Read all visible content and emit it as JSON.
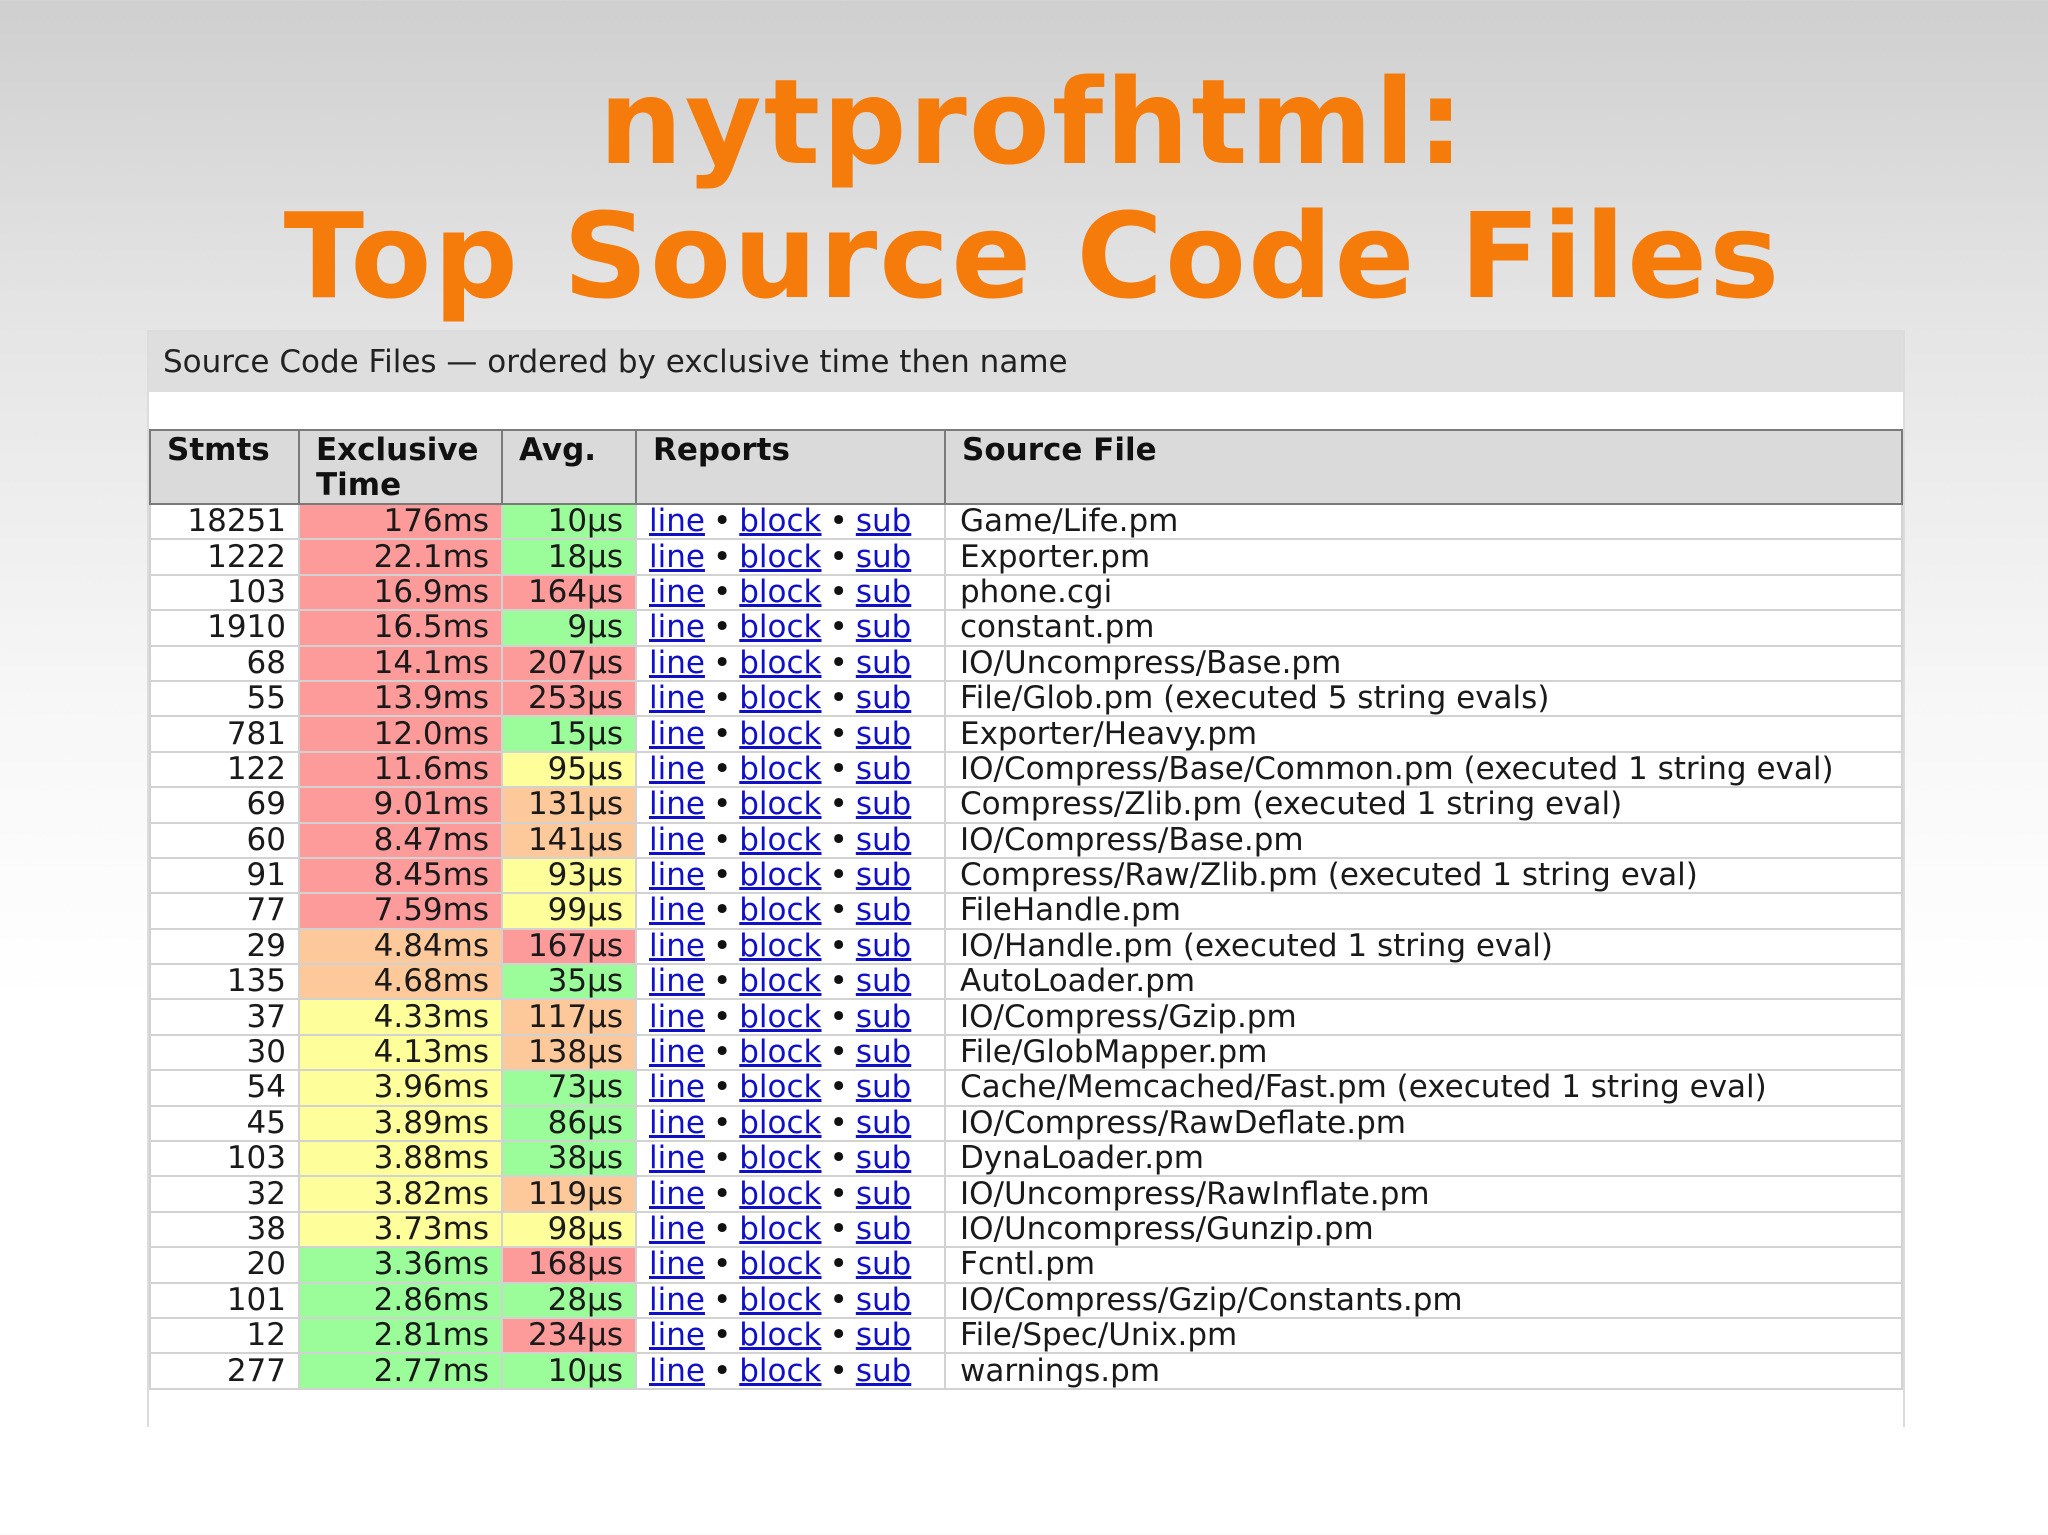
{
  "slide": {
    "title_line1": "nytprofhtml:",
    "title_line2": "Top Source Code Files"
  },
  "report": {
    "caption": "Source Code Files — ordered by exclusive time then name",
    "columns": [
      "Stmts",
      "Exclusive Time",
      "Avg.",
      "Reports",
      "Source File"
    ],
    "link_labels": [
      "line",
      "block",
      "sub"
    ],
    "separator": "•",
    "colors": {
      "red": "#fd9a9a",
      "orange": "#fdc99b",
      "yellow": "#fefe9a",
      "green": "#9bfd9a",
      "link": "#1010c8",
      "title": "#f57c0b"
    },
    "rows": [
      {
        "stmts": "18251",
        "time": "176ms",
        "time_color": "red",
        "avg": "10µs",
        "avg_color": "green",
        "file": "Game/Life.pm"
      },
      {
        "stmts": "1222",
        "time": "22.1ms",
        "time_color": "red",
        "avg": "18µs",
        "avg_color": "green",
        "file": "Exporter.pm"
      },
      {
        "stmts": "103",
        "time": "16.9ms",
        "time_color": "red",
        "avg": "164µs",
        "avg_color": "red",
        "file": "phone.cgi"
      },
      {
        "stmts": "1910",
        "time": "16.5ms",
        "time_color": "red",
        "avg": "9µs",
        "avg_color": "green",
        "file": "constant.pm"
      },
      {
        "stmts": "68",
        "time": "14.1ms",
        "time_color": "red",
        "avg": "207µs",
        "avg_color": "red",
        "file": "IO/Uncompress/Base.pm"
      },
      {
        "stmts": "55",
        "time": "13.9ms",
        "time_color": "red",
        "avg": "253µs",
        "avg_color": "red",
        "file": "File/Glob.pm (executed 5 string evals)"
      },
      {
        "stmts": "781",
        "time": "12.0ms",
        "time_color": "red",
        "avg": "15µs",
        "avg_color": "green",
        "file": "Exporter/Heavy.pm"
      },
      {
        "stmts": "122",
        "time": "11.6ms",
        "time_color": "red",
        "avg": "95µs",
        "avg_color": "yellow",
        "file": "IO/Compress/Base/Common.pm (executed 1 string eval)"
      },
      {
        "stmts": "69",
        "time": "9.01ms",
        "time_color": "red",
        "avg": "131µs",
        "avg_color": "orange",
        "file": "Compress/Zlib.pm (executed 1 string eval)"
      },
      {
        "stmts": "60",
        "time": "8.47ms",
        "time_color": "red",
        "avg": "141µs",
        "avg_color": "orange",
        "file": "IO/Compress/Base.pm"
      },
      {
        "stmts": "91",
        "time": "8.45ms",
        "time_color": "red",
        "avg": "93µs",
        "avg_color": "yellow",
        "file": "Compress/Raw/Zlib.pm (executed 1 string eval)"
      },
      {
        "stmts": "77",
        "time": "7.59ms",
        "time_color": "red",
        "avg": "99µs",
        "avg_color": "yellow",
        "file": "FileHandle.pm"
      },
      {
        "stmts": "29",
        "time": "4.84ms",
        "time_color": "orange",
        "avg": "167µs",
        "avg_color": "red",
        "file": "IO/Handle.pm (executed 1 string eval)"
      },
      {
        "stmts": "135",
        "time": "4.68ms",
        "time_color": "orange",
        "avg": "35µs",
        "avg_color": "green",
        "file": "AutoLoader.pm"
      },
      {
        "stmts": "37",
        "time": "4.33ms",
        "time_color": "yellow",
        "avg": "117µs",
        "avg_color": "orange",
        "file": "IO/Compress/Gzip.pm"
      },
      {
        "stmts": "30",
        "time": "4.13ms",
        "time_color": "yellow",
        "avg": "138µs",
        "avg_color": "orange",
        "file": "File/GlobMapper.pm"
      },
      {
        "stmts": "54",
        "time": "3.96ms",
        "time_color": "yellow",
        "avg": "73µs",
        "avg_color": "green",
        "file": "Cache/Memcached/Fast.pm (executed 1 string eval)"
      },
      {
        "stmts": "45",
        "time": "3.89ms",
        "time_color": "yellow",
        "avg": "86µs",
        "avg_color": "green",
        "file": "IO/Compress/RawDeflate.pm"
      },
      {
        "stmts": "103",
        "time": "3.88ms",
        "time_color": "yellow",
        "avg": "38µs",
        "avg_color": "green",
        "file": "DynaLoader.pm"
      },
      {
        "stmts": "32",
        "time": "3.82ms",
        "time_color": "yellow",
        "avg": "119µs",
        "avg_color": "orange",
        "file": "IO/Uncompress/RawInflate.pm"
      },
      {
        "stmts": "38",
        "time": "3.73ms",
        "time_color": "yellow",
        "avg": "98µs",
        "avg_color": "yellow",
        "file": "IO/Uncompress/Gunzip.pm"
      },
      {
        "stmts": "20",
        "time": "3.36ms",
        "time_color": "green",
        "avg": "168µs",
        "avg_color": "red",
        "file": "Fcntl.pm"
      },
      {
        "stmts": "101",
        "time": "2.86ms",
        "time_color": "green",
        "avg": "28µs",
        "avg_color": "green",
        "file": "IO/Compress/Gzip/Constants.pm"
      },
      {
        "stmts": "12",
        "time": "2.81ms",
        "time_color": "green",
        "avg": "234µs",
        "avg_color": "red",
        "file": "File/Spec/Unix.pm"
      },
      {
        "stmts": "277",
        "time": "2.77ms",
        "time_color": "green",
        "avg": "10µs",
        "avg_color": "green",
        "file": "warnings.pm"
      }
    ]
  }
}
